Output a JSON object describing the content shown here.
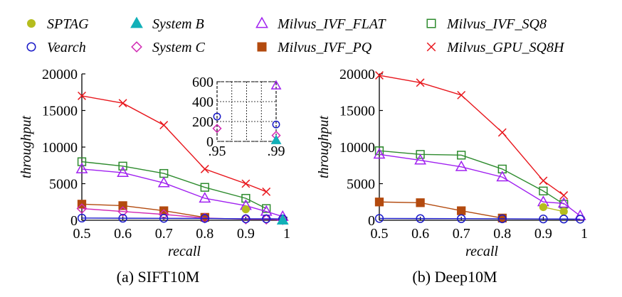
{
  "legend": [
    {
      "name": "SPTAG",
      "color": "#b5bd1e",
      "marker": "dot"
    },
    {
      "name": "Vearch",
      "color": "#1a1ac8",
      "marker": "circle"
    },
    {
      "name": "System B",
      "color": "#12b0b8",
      "marker": "triangle-filled"
    },
    {
      "name": "System C",
      "color": "#d22ab4",
      "marker": "diamond"
    },
    {
      "name": "Milvus_IVF_FLAT",
      "color": "#a020f0",
      "marker": "triangle"
    },
    {
      "name": "Milvus_IVF_PQ",
      "color": "#b34a0e",
      "marker": "square-filled"
    },
    {
      "name": "Milvus_IVF_SQ8",
      "color": "#2e8b2e",
      "marker": "square"
    },
    {
      "name": "Milvus_GPU_SQ8H",
      "color": "#e8161c",
      "marker": "x"
    }
  ],
  "chart_data": [
    {
      "type": "line",
      "caption": "(a) SIFT10M",
      "xlabel": "recall",
      "ylabel": "throughput",
      "xlim": [
        0.5,
        1
      ],
      "ylim": [
        0,
        20000
      ],
      "xticks": [
        "0.5",
        "0.6",
        "0.7",
        "0.8",
        "0.9",
        "1"
      ],
      "yticks": [
        "0",
        "5000",
        "10000",
        "15000",
        "20000"
      ],
      "series": [
        {
          "name": "Milvus_GPU_SQ8H",
          "x": [
            0.5,
            0.6,
            0.7,
            0.8,
            0.9,
            0.95
          ],
          "y": [
            17000,
            16000,
            13000,
            7000,
            5000,
            3900
          ]
        },
        {
          "name": "Milvus_IVF_SQ8",
          "x": [
            0.5,
            0.6,
            0.7,
            0.8,
            0.9,
            0.95
          ],
          "y": [
            8000,
            7400,
            6400,
            4500,
            3000,
            1600
          ]
        },
        {
          "name": "Milvus_IVF_FLAT",
          "x": [
            0.5,
            0.6,
            0.7,
            0.8,
            0.9,
            0.95,
            0.99
          ],
          "y": [
            7000,
            6500,
            5100,
            3000,
            2000,
            1200,
            500
          ]
        },
        {
          "name": "Milvus_IVF_PQ",
          "x": [
            0.5,
            0.6,
            0.7,
            0.8
          ],
          "y": [
            2200,
            2000,
            1300,
            400
          ]
        },
        {
          "name": "System C",
          "x": [
            0.5,
            0.6,
            0.7,
            0.8,
            0.9,
            0.95,
            0.99
          ],
          "y": [
            1600,
            1200,
            800,
            300,
            150,
            130,
            60
          ]
        },
        {
          "name": "Vearch",
          "x": [
            0.5,
            0.6,
            0.7,
            0.8,
            0.9,
            0.95,
            0.99
          ],
          "y": [
            300,
            280,
            260,
            250,
            200,
            200,
            180
          ]
        },
        {
          "name": "SPTAG",
          "x": [
            0.9
          ],
          "y": [
            1500
          ]
        },
        {
          "name": "System B",
          "x": [
            0.99
          ],
          "y": [
            0
          ]
        }
      ],
      "inset": {
        "xlim": [
          0.95,
          0.99
        ],
        "ylim": [
          0,
          600
        ],
        "xticks": [
          ".95",
          ".99"
        ],
        "yticks": [
          "0",
          "200",
          "400",
          "600"
        ],
        "series": [
          {
            "name": "Milvus_IVF_FLAT",
            "x": [
              0.99
            ],
            "y": [
              560
            ]
          },
          {
            "name": "Vearch",
            "x": [
              0.95,
              0.99
            ],
            "y": [
              250,
              170
            ]
          },
          {
            "name": "System C",
            "x": [
              0.95,
              0.99
            ],
            "y": [
              130,
              60
            ]
          },
          {
            "name": "System B",
            "x": [
              0.99
            ],
            "y": [
              10
            ]
          }
        ]
      }
    },
    {
      "type": "line",
      "caption": "(b) Deep10M",
      "xlabel": "recall",
      "ylabel": "throughput",
      "xlim": [
        0.5,
        1
      ],
      "ylim": [
        0,
        20000
      ],
      "xticks": [
        "0.5",
        "0.6",
        "0.7",
        "0.8",
        "0.9",
        "1"
      ],
      "yticks": [
        "0",
        "5000",
        "10000",
        "15000",
        "20000"
      ],
      "series": [
        {
          "name": "Milvus_GPU_SQ8H",
          "x": [
            0.5,
            0.6,
            0.7,
            0.8,
            0.9,
            0.95
          ],
          "y": [
            19800,
            18800,
            17100,
            12000,
            5400,
            3400
          ]
        },
        {
          "name": "Milvus_IVF_SQ8",
          "x": [
            0.5,
            0.6,
            0.7,
            0.8,
            0.9,
            0.95
          ],
          "y": [
            9500,
            9000,
            8900,
            7000,
            4000,
            2200
          ]
        },
        {
          "name": "Milvus_IVF_FLAT",
          "x": [
            0.5,
            0.6,
            0.7,
            0.8,
            0.9,
            0.95,
            0.99
          ],
          "y": [
            9000,
            8200,
            7300,
            5900,
            2500,
            2300,
            600
          ]
        },
        {
          "name": "Milvus_IVF_PQ",
          "x": [
            0.5,
            0.6,
            0.7,
            0.8
          ],
          "y": [
            2500,
            2400,
            1300,
            300
          ]
        },
        {
          "name": "SPTAG",
          "x": [
            0.9,
            0.95
          ],
          "y": [
            1800,
            1200
          ]
        },
        {
          "name": "Vearch",
          "x": [
            0.5,
            0.6,
            0.7,
            0.8,
            0.9,
            0.95,
            0.99
          ],
          "y": [
            250,
            230,
            220,
            200,
            180,
            170,
            150
          ]
        }
      ]
    }
  ]
}
